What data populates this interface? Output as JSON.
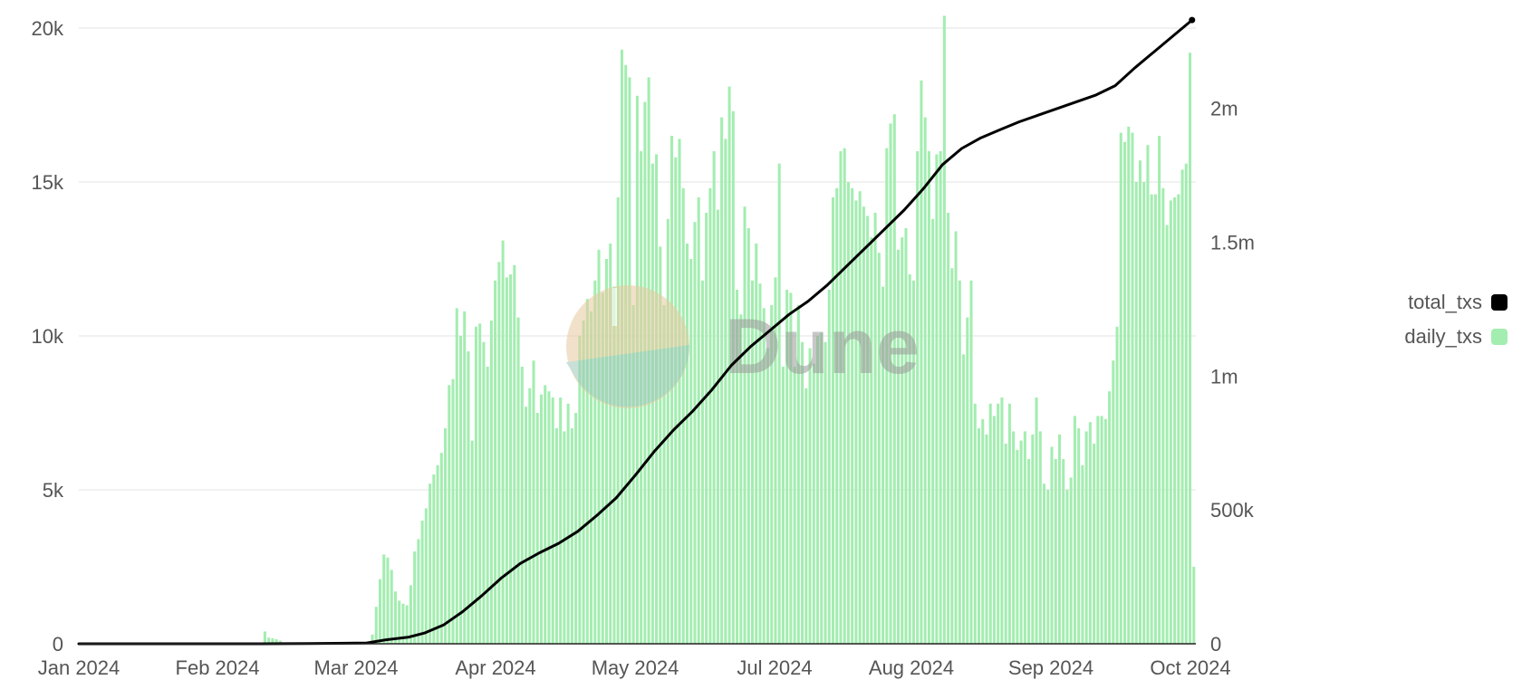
{
  "chart_data": {
    "type": "bar+line",
    "title": "",
    "colors": {
      "daily": "#a3edb0",
      "total": "#000000",
      "grid": "#e3e3e3"
    },
    "x_ticks": [
      "Jan 2024",
      "Feb 2024",
      "Mar 2024",
      "Apr 2024",
      "May 2024",
      "Jul 2024",
      "Aug 2024",
      "Sep 2024",
      "Oct 2024"
    ],
    "y_left": {
      "ylim": [
        0,
        20000
      ],
      "ticks": [
        "0",
        "5k",
        "10k",
        "15k",
        "20k"
      ]
    },
    "y_right": {
      "ylim": [
        0,
        2300000
      ],
      "ticks": [
        "0",
        "500k",
        "1m",
        "1.5m",
        "2m"
      ]
    },
    "series": [
      {
        "name": "daily_txs",
        "type": "bar",
        "axis": "left",
        "values": [
          [
            48,
            400
          ],
          [
            49,
            200
          ],
          [
            50,
            180
          ],
          [
            51,
            150
          ],
          [
            52,
            100
          ],
          [
            76,
            300
          ],
          [
            77,
            1200
          ],
          [
            78,
            2100
          ],
          [
            79,
            2900
          ],
          [
            80,
            2800
          ],
          [
            81,
            2400
          ],
          [
            82,
            1700
          ],
          [
            83,
            1400
          ],
          [
            84,
            1300
          ],
          [
            85,
            1250
          ],
          [
            86,
            1900
          ],
          [
            87,
            3000
          ],
          [
            88,
            3400
          ],
          [
            89,
            4000
          ],
          [
            90,
            4400
          ],
          [
            91,
            5200
          ],
          [
            92,
            5500
          ],
          [
            93,
            5800
          ],
          [
            94,
            6200
          ],
          [
            95,
            7000
          ],
          [
            96,
            8400
          ],
          [
            97,
            8600
          ],
          [
            98,
            10900
          ],
          [
            99,
            10000
          ],
          [
            100,
            10800
          ],
          [
            101,
            9500
          ],
          [
            102,
            6600
          ],
          [
            103,
            10300
          ],
          [
            104,
            10400
          ],
          [
            105,
            9800
          ],
          [
            106,
            9000
          ],
          [
            107,
            10500
          ],
          [
            108,
            11800
          ],
          [
            109,
            12400
          ],
          [
            110,
            13100
          ],
          [
            111,
            11900
          ],
          [
            112,
            12000
          ],
          [
            113,
            12300
          ],
          [
            114,
            10600
          ],
          [
            115,
            9000
          ],
          [
            116,
            7700
          ],
          [
            117,
            8300
          ],
          [
            118,
            9200
          ],
          [
            119,
            7500
          ],
          [
            120,
            8100
          ],
          [
            121,
            8400
          ],
          [
            122,
            8200
          ],
          [
            123,
            8000
          ],
          [
            124,
            7000
          ],
          [
            125,
            8000
          ],
          [
            126,
            6900
          ],
          [
            127,
            7800
          ],
          [
            128,
            7000
          ],
          [
            129,
            7500
          ],
          [
            130,
            10000
          ],
          [
            131,
            10500
          ],
          [
            132,
            11200
          ],
          [
            133,
            10800
          ],
          [
            134,
            11800
          ],
          [
            135,
            12800
          ],
          [
            136,
            11400
          ],
          [
            137,
            12500
          ],
          [
            138,
            13000
          ],
          [
            139,
            11600
          ],
          [
            140,
            14500
          ],
          [
            141,
            19300
          ],
          [
            142,
            18800
          ],
          [
            143,
            18400
          ],
          [
            144,
            11000
          ],
          [
            145,
            17800
          ],
          [
            146,
            16000
          ],
          [
            147,
            17600
          ],
          [
            148,
            18400
          ],
          [
            149,
            15600
          ],
          [
            150,
            15900
          ],
          [
            151,
            12900
          ],
          [
            152,
            11000
          ],
          [
            153,
            13800
          ],
          [
            154,
            16500
          ],
          [
            155,
            15800
          ],
          [
            156,
            16400
          ],
          [
            157,
            14800
          ],
          [
            158,
            13000
          ],
          [
            159,
            12500
          ],
          [
            160,
            13700
          ],
          [
            161,
            14500
          ],
          [
            162,
            11800
          ],
          [
            163,
            14000
          ],
          [
            164,
            14800
          ],
          [
            165,
            16000
          ],
          [
            166,
            14100
          ],
          [
            167,
            17100
          ],
          [
            168,
            16400
          ],
          [
            169,
            18100
          ],
          [
            170,
            17300
          ],
          [
            171,
            11500
          ],
          [
            172,
            10700
          ],
          [
            173,
            14200
          ],
          [
            174,
            13500
          ],
          [
            175,
            11800
          ],
          [
            176,
            13000
          ],
          [
            177,
            11700
          ],
          [
            178,
            10900
          ],
          [
            179,
            9600
          ],
          [
            180,
            11000
          ],
          [
            181,
            11900
          ],
          [
            182,
            15600
          ],
          [
            183,
            9000
          ],
          [
            184,
            11500
          ],
          [
            185,
            11400
          ],
          [
            186,
            9000
          ],
          [
            187,
            11000
          ],
          [
            188,
            9800
          ],
          [
            189,
            8300
          ],
          [
            190,
            9600
          ],
          [
            191,
            9100
          ],
          [
            192,
            10000
          ],
          [
            193,
            10100
          ],
          [
            194,
            9800
          ],
          [
            195,
            11500
          ],
          [
            196,
            14500
          ],
          [
            197,
            14800
          ],
          [
            198,
            16000
          ],
          [
            199,
            16100
          ],
          [
            200,
            15000
          ],
          [
            201,
            14800
          ],
          [
            202,
            14400
          ],
          [
            203,
            14700
          ],
          [
            204,
            14200
          ],
          [
            205,
            13900
          ],
          [
            206,
            13200
          ],
          [
            207,
            14000
          ],
          [
            208,
            12700
          ],
          [
            209,
            11600
          ],
          [
            210,
            16100
          ],
          [
            211,
            16900
          ],
          [
            212,
            17200
          ],
          [
            213,
            12800
          ],
          [
            214,
            13200
          ],
          [
            215,
            13500
          ],
          [
            216,
            12000
          ],
          [
            217,
            11800
          ],
          [
            218,
            16000
          ],
          [
            219,
            18300
          ],
          [
            220,
            17100
          ],
          [
            221,
            16000
          ],
          [
            222,
            13800
          ],
          [
            223,
            15900
          ],
          [
            224,
            16000
          ],
          [
            225,
            20400
          ],
          [
            226,
            14000
          ],
          [
            227,
            12200
          ],
          [
            228,
            13400
          ],
          [
            229,
            11800
          ],
          [
            230,
            9400
          ],
          [
            231,
            10600
          ],
          [
            232,
            11800
          ],
          [
            233,
            7800
          ],
          [
            234,
            7000
          ],
          [
            235,
            7300
          ],
          [
            236,
            6800
          ],
          [
            237,
            7800
          ],
          [
            238,
            7400
          ],
          [
            239,
            7800
          ],
          [
            240,
            8000
          ],
          [
            241,
            6500
          ],
          [
            242,
            7800
          ],
          [
            243,
            6900
          ],
          [
            244,
            6300
          ],
          [
            245,
            6600
          ],
          [
            246,
            6900
          ],
          [
            247,
            6000
          ],
          [
            248,
            6800
          ],
          [
            249,
            8000
          ],
          [
            250,
            6900
          ],
          [
            251,
            5200
          ],
          [
            252,
            5000
          ],
          [
            253,
            6400
          ],
          [
            254,
            6000
          ],
          [
            255,
            6800
          ],
          [
            256,
            6000
          ],
          [
            257,
            5000
          ],
          [
            258,
            5400
          ],
          [
            259,
            7400
          ],
          [
            260,
            7000
          ],
          [
            261,
            5800
          ],
          [
            262,
            6900
          ],
          [
            263,
            7200
          ],
          [
            264,
            6500
          ],
          [
            265,
            7400
          ],
          [
            266,
            7400
          ],
          [
            267,
            7300
          ],
          [
            268,
            8200
          ],
          [
            269,
            9200
          ],
          [
            270,
            10300
          ],
          [
            271,
            16600
          ],
          [
            272,
            16300
          ],
          [
            273,
            16800
          ],
          [
            274,
            16600
          ],
          [
            275,
            15000
          ],
          [
            276,
            15700
          ],
          [
            277,
            15000
          ],
          [
            278,
            16200
          ],
          [
            279,
            14600
          ],
          [
            280,
            14600
          ],
          [
            281,
            16500
          ],
          [
            282,
            14800
          ],
          [
            283,
            13600
          ],
          [
            284,
            14400
          ],
          [
            285,
            14500
          ],
          [
            286,
            14600
          ],
          [
            287,
            15400
          ],
          [
            288,
            15600
          ],
          [
            289,
            19200
          ],
          [
            290,
            2500
          ]
        ]
      },
      {
        "name": "total_txs",
        "type": "line",
        "axis": "right",
        "values": [
          [
            0,
            0
          ],
          [
            47,
            0
          ],
          [
            60,
            1000
          ],
          [
            75,
            3000
          ],
          [
            80,
            15000
          ],
          [
            86,
            25000
          ],
          [
            90,
            40000
          ],
          [
            95,
            70000
          ],
          [
            100,
            120000
          ],
          [
            105,
            180000
          ],
          [
            110,
            245000
          ],
          [
            115,
            300000
          ],
          [
            120,
            340000
          ],
          [
            125,
            375000
          ],
          [
            130,
            420000
          ],
          [
            135,
            480000
          ],
          [
            140,
            545000
          ],
          [
            145,
            630000
          ],
          [
            150,
            720000
          ],
          [
            155,
            800000
          ],
          [
            160,
            870000
          ],
          [
            165,
            950000
          ],
          [
            170,
            1040000
          ],
          [
            175,
            1110000
          ],
          [
            180,
            1170000
          ],
          [
            185,
            1230000
          ],
          [
            190,
            1280000
          ],
          [
            195,
            1340000
          ],
          [
            200,
            1410000
          ],
          [
            205,
            1480000
          ],
          [
            210,
            1550000
          ],
          [
            215,
            1620000
          ],
          [
            220,
            1700000
          ],
          [
            225,
            1790000
          ],
          [
            230,
            1850000
          ],
          [
            235,
            1890000
          ],
          [
            240,
            1920000
          ],
          [
            245,
            1950000
          ],
          [
            250,
            1975000
          ],
          [
            255,
            2000000
          ],
          [
            260,
            2025000
          ],
          [
            265,
            2050000
          ],
          [
            270,
            2085000
          ],
          [
            275,
            2150000
          ],
          [
            280,
            2210000
          ],
          [
            285,
            2270000
          ],
          [
            290,
            2330000
          ]
        ]
      }
    ],
    "legend": {
      "position": "right",
      "items": [
        {
          "label": "total_txs",
          "color": "#000000"
        },
        {
          "label": "daily_txs",
          "color": "#a3edb0"
        }
      ]
    },
    "watermark": "Dune"
  }
}
